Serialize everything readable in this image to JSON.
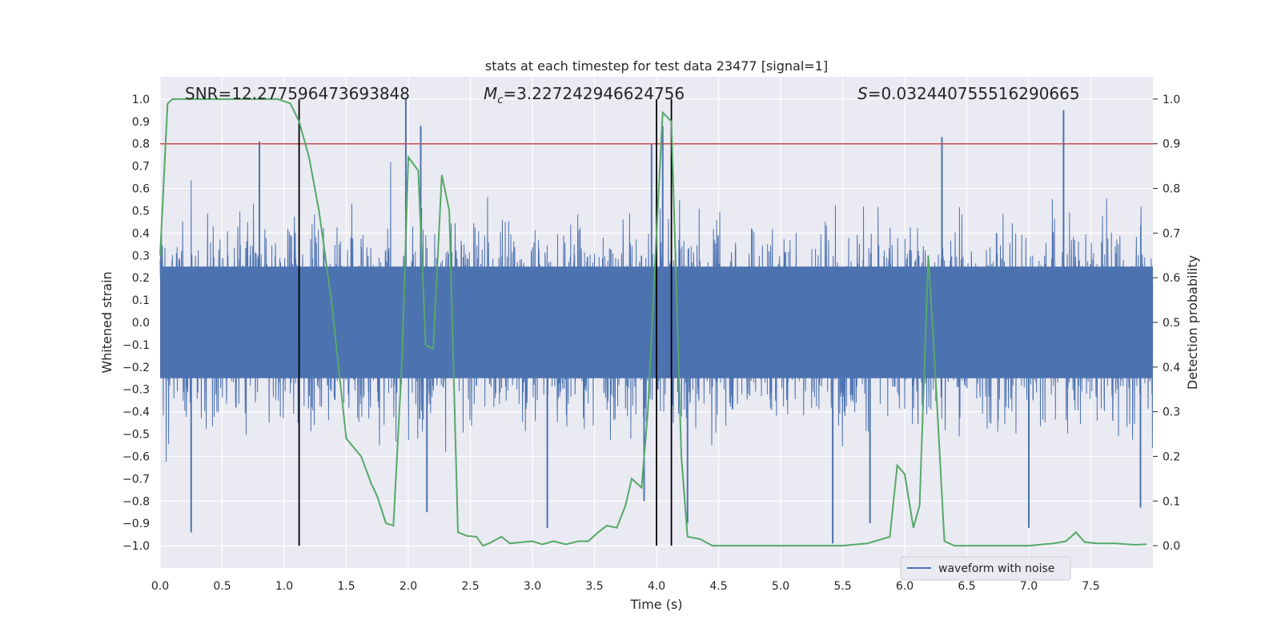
{
  "chart_data": {
    "type": "line",
    "title": "stats at each timestep for test data 23477 [signal=1]",
    "xlabel": "Time (s)",
    "ylabel_left": "Whitened strain",
    "ylabel_right": "Detection probability",
    "xlim": [
      0,
      8.0
    ],
    "ylim_left": [
      -1.1,
      1.1
    ],
    "ylim_right": [
      -0.05,
      1.05
    ],
    "x_ticks": [
      0.0,
      0.5,
      1.0,
      1.5,
      2.0,
      2.5,
      3.0,
      3.5,
      4.0,
      4.5,
      5.0,
      5.5,
      6.0,
      6.5,
      7.0,
      7.5
    ],
    "y_ticks_left": [
      1.0,
      0.9,
      0.8,
      0.7,
      0.6,
      0.5,
      0.4,
      0.3,
      0.2,
      0.1,
      0.0,
      -0.1,
      -0.2,
      -0.3,
      -0.4,
      -0.5,
      -0.6,
      -0.7,
      -0.8,
      -0.9,
      -1.0
    ],
    "y_ticks_right": [
      1.0,
      0.9,
      0.8,
      0.7,
      0.6,
      0.5,
      0.4,
      0.3,
      0.2,
      0.1,
      0.0
    ],
    "grid": true,
    "legend_position": "bottom-right",
    "annotations": {
      "snr": "SNR=12.277596473693848",
      "mc_symbol": "M",
      "mc_sub": "c",
      "mc_value": "=3.227242946624756",
      "s_symbol": "S",
      "s_value": "=0.032440755516290665"
    },
    "threshold_line": {
      "y_left": 0.8,
      "color": "#c44e52"
    },
    "vertical_lines": [
      1.12,
      4.0,
      4.12
    ],
    "series": [
      {
        "name": "waveform with noise",
        "color": "#4c72b0",
        "axis": "left",
        "kind": "noise",
        "envelope_abs": 0.3,
        "peaks": [
          {
            "t": 0.25,
            "v": -0.94
          },
          {
            "t": 0.8,
            "v": 0.81
          },
          {
            "t": 1.98,
            "v": 1.0
          },
          {
            "t": 2.1,
            "v": 0.88
          },
          {
            "t": 2.15,
            "v": -0.85
          },
          {
            "t": 3.12,
            "v": -0.92
          },
          {
            "t": 3.9,
            "v": -0.8
          },
          {
            "t": 3.96,
            "v": 0.8
          },
          {
            "t": 4.05,
            "v": 0.88
          },
          {
            "t": 4.25,
            "v": -0.9
          },
          {
            "t": 5.42,
            "v": -0.99
          },
          {
            "t": 5.72,
            "v": -0.9
          },
          {
            "t": 6.3,
            "v": 0.83
          },
          {
            "t": 7.0,
            "v": -0.92
          },
          {
            "t": 7.28,
            "v": 0.95
          },
          {
            "t": 7.9,
            "v": -0.83
          }
        ]
      },
      {
        "name": "detection probability",
        "color": "#55a868",
        "axis": "right",
        "t": [
          0.0,
          0.06,
          0.1,
          0.2,
          0.4,
          0.6,
          0.8,
          0.95,
          1.05,
          1.12,
          1.2,
          1.28,
          1.38,
          1.5,
          1.62,
          1.7,
          1.75,
          1.82,
          1.88,
          1.95,
          2.0,
          2.08,
          2.14,
          2.2,
          2.27,
          2.33,
          2.4,
          2.47,
          2.55,
          2.6,
          2.65,
          2.75,
          2.82,
          2.92,
          3.0,
          3.08,
          3.17,
          3.27,
          3.37,
          3.45,
          3.53,
          3.6,
          3.68,
          3.75,
          3.8,
          3.88,
          3.93,
          4.0,
          4.05,
          4.12,
          4.2,
          4.25,
          4.35,
          4.45,
          4.6,
          4.9,
          5.25,
          5.5,
          5.7,
          5.88,
          5.94,
          6.0,
          6.07,
          6.12,
          6.19,
          6.25,
          6.32,
          6.4,
          6.6,
          7.0,
          7.2,
          7.3,
          7.38,
          7.45,
          7.55,
          7.7,
          7.85,
          7.95
        ],
        "values": [
          0.65,
          0.99,
          1.0,
          1.0,
          1.0,
          1.0,
          1.0,
          1.0,
          0.99,
          0.95,
          0.87,
          0.75,
          0.55,
          0.24,
          0.2,
          0.14,
          0.11,
          0.05,
          0.045,
          0.42,
          0.87,
          0.84,
          0.45,
          0.44,
          0.83,
          0.75,
          0.03,
          0.022,
          0.02,
          0.0,
          0.005,
          0.02,
          0.005,
          0.008,
          0.01,
          0.003,
          0.01,
          0.003,
          0.01,
          0.01,
          0.03,
          0.045,
          0.04,
          0.09,
          0.15,
          0.13,
          0.3,
          0.7,
          0.97,
          0.95,
          0.2,
          0.02,
          0.015,
          0.0,
          0.0,
          0.0,
          0.0,
          0.0,
          0.005,
          0.02,
          0.18,
          0.16,
          0.04,
          0.09,
          0.65,
          0.37,
          0.01,
          0.0,
          0.0,
          0.0,
          0.005,
          0.01,
          0.03,
          0.008,
          0.005,
          0.005,
          0.002,
          0.003
        ]
      }
    ]
  }
}
